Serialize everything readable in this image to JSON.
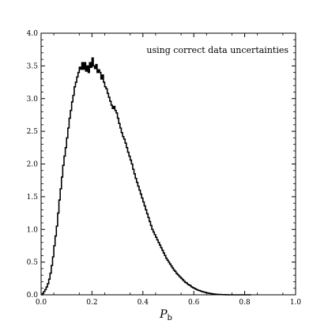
{
  "chart_data": {
    "type": "histogram",
    "xlabel": "P",
    "xlabel_sub": "b",
    "ylabel": "",
    "title": "",
    "annotation": "using correct data uncertainties",
    "xlim": [
      0.0,
      1.0
    ],
    "ylim": [
      0.0,
      4.0
    ],
    "x_ticks": [
      0.0,
      0.2,
      0.4,
      0.6,
      0.8,
      1.0
    ],
    "x_tick_labels": [
      "0.0",
      "0.2",
      "0.4",
      "0.6",
      "0.8",
      "1.0"
    ],
    "y_ticks": [
      0.0,
      0.5,
      1.0,
      1.5,
      2.0,
      2.5,
      3.0,
      3.5,
      4.0
    ],
    "y_tick_labels": [
      "0.0",
      "0.5",
      "1.0",
      "1.5",
      "2.0",
      "2.5",
      "3.0",
      "3.5",
      "4.0"
    ],
    "bin_width": 0.005,
    "bin_start": 0.0,
    "values": [
      0.0,
      0.02,
      0.05,
      0.08,
      0.12,
      0.17,
      0.24,
      0.33,
      0.45,
      0.58,
      0.75,
      0.9,
      1.05,
      1.25,
      1.45,
      1.62,
      1.8,
      1.98,
      2.12,
      2.25,
      2.4,
      2.55,
      2.7,
      2.82,
      2.95,
      3.05,
      3.18,
      3.25,
      3.33,
      3.4,
      3.48,
      3.45,
      3.55,
      3.45,
      3.55,
      3.42,
      3.5,
      3.4,
      3.55,
      3.48,
      3.62,
      3.5,
      3.46,
      3.52,
      3.4,
      3.44,
      3.4,
      3.3,
      3.36,
      3.25,
      3.18,
      3.15,
      3.08,
      3.02,
      2.96,
      2.9,
      2.85,
      2.88,
      2.82,
      2.78,
      2.7,
      2.62,
      2.55,
      2.48,
      2.42,
      2.38,
      2.32,
      2.25,
      2.18,
      2.12,
      2.06,
      2.0,
      1.92,
      1.85,
      1.78,
      1.72,
      1.66,
      1.6,
      1.54,
      1.48,
      1.42,
      1.36,
      1.3,
      1.24,
      1.18,
      1.12,
      1.06,
      1.0,
      0.96,
      0.92,
      0.88,
      0.84,
      0.8,
      0.76,
      0.72,
      0.68,
      0.64,
      0.6,
      0.56,
      0.53,
      0.5,
      0.47,
      0.44,
      0.41,
      0.38,
      0.36,
      0.33,
      0.31,
      0.29,
      0.27,
      0.25,
      0.23,
      0.21,
      0.19,
      0.18,
      0.16,
      0.15,
      0.14,
      0.12,
      0.11,
      0.1,
      0.09,
      0.08,
      0.07,
      0.065,
      0.058,
      0.05,
      0.045,
      0.04,
      0.035,
      0.03,
      0.026,
      0.022,
      0.019,
      0.016,
      0.013,
      0.011,
      0.009,
      0.007,
      0.006,
      0.005,
      0.004,
      0.003,
      0.002,
      0.002,
      0.001,
      0.001,
      0.001,
      0.0,
      0.0,
      0.0,
      0.0,
      0.0,
      0.0,
      0.0,
      0.0,
      0.0,
      0.0,
      0.0,
      0.0,
      0.0,
      0.0,
      0.0,
      0.0,
      0.0
    ],
    "line_color": "#000000",
    "grid": false,
    "legend": "none"
  }
}
